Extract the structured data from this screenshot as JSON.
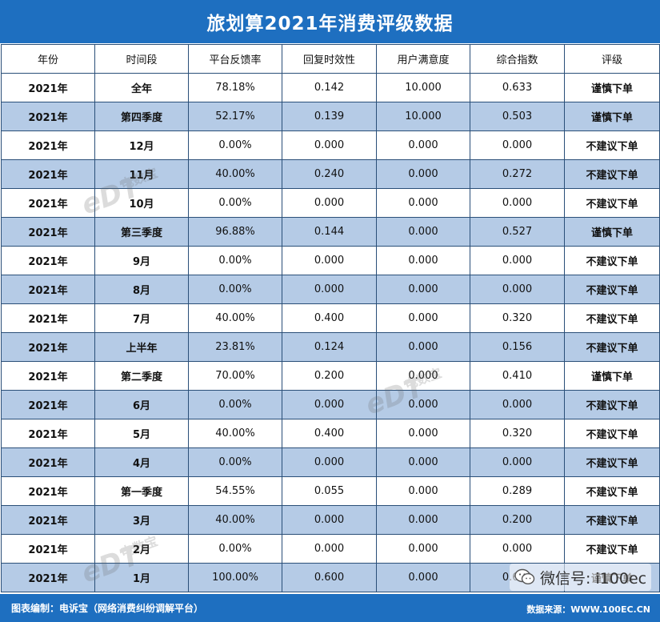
{
  "header": {
    "title": "旅划算2021年消费评级数据"
  },
  "table": {
    "columns": [
      "年份",
      "时间段",
      "平台反馈率",
      "回复时效性",
      "用户满意度",
      "综合指数",
      "评级"
    ],
    "rows": [
      [
        "2021年",
        "全年",
        "78.18%",
        "0.142",
        "10.000",
        "0.633",
        "谨慎下单"
      ],
      [
        "2021年",
        "第四季度",
        "52.17%",
        "0.139",
        "10.000",
        "0.503",
        "谨慎下单"
      ],
      [
        "2021年",
        "12月",
        "0.00%",
        "0.000",
        "0.000",
        "0.000",
        "不建议下单"
      ],
      [
        "2021年",
        "11月",
        "40.00%",
        "0.240",
        "0.000",
        "0.272",
        "不建议下单"
      ],
      [
        "2021年",
        "10月",
        "0.00%",
        "0.000",
        "0.000",
        "0.000",
        "不建议下单"
      ],
      [
        "2021年",
        "第三季度",
        "96.88%",
        "0.144",
        "0.000",
        "0.527",
        "谨慎下单"
      ],
      [
        "2021年",
        "9月",
        "0.00%",
        "0.000",
        "0.000",
        "0.000",
        "不建议下单"
      ],
      [
        "2021年",
        "8月",
        "0.00%",
        "0.000",
        "0.000",
        "0.000",
        "不建议下单"
      ],
      [
        "2021年",
        "7月",
        "40.00%",
        "0.400",
        "0.000",
        "0.320",
        "不建议下单"
      ],
      [
        "2021年",
        "上半年",
        "23.81%",
        "0.124",
        "0.000",
        "0.156",
        "不建议下单"
      ],
      [
        "2021年",
        "第二季度",
        "70.00%",
        "0.200",
        "0.000",
        "0.410",
        "谨慎下单"
      ],
      [
        "2021年",
        "6月",
        "0.00%",
        "0.000",
        "0.000",
        "0.000",
        "不建议下单"
      ],
      [
        "2021年",
        "5月",
        "40.00%",
        "0.400",
        "0.000",
        "0.320",
        "不建议下单"
      ],
      [
        "2021年",
        "4月",
        "0.00%",
        "0.000",
        "0.000",
        "0.000",
        "不建议下单"
      ],
      [
        "2021年",
        "第一季度",
        "54.55%",
        "0.055",
        "0.000",
        "0.289",
        "不建议下单"
      ],
      [
        "2021年",
        "3月",
        "40.00%",
        "0.000",
        "0.000",
        "0.200",
        "不建议下单"
      ],
      [
        "2021年",
        "2月",
        "0.00%",
        "0.000",
        "0.000",
        "0.000",
        "不建议下单"
      ],
      [
        "2021年",
        "1月",
        "100.00%",
        "0.600",
        "0.000",
        "0.680",
        "谨慎下单"
      ]
    ]
  },
  "footer": {
    "credit": "图表编制：电诉宝（网络消费纠纷调解平台）",
    "source": "数据来源：WWW.100EC.CN"
  },
  "wechat": {
    "label": "微信号: i100ec",
    "icon": "wechat-icon"
  },
  "watermark": {
    "main": "eDT",
    "sub": "电数宝"
  },
  "colors": {
    "header_bg": "#1e6fc0",
    "row_alt": "#b5cbe6",
    "border": "#2a4f78"
  }
}
